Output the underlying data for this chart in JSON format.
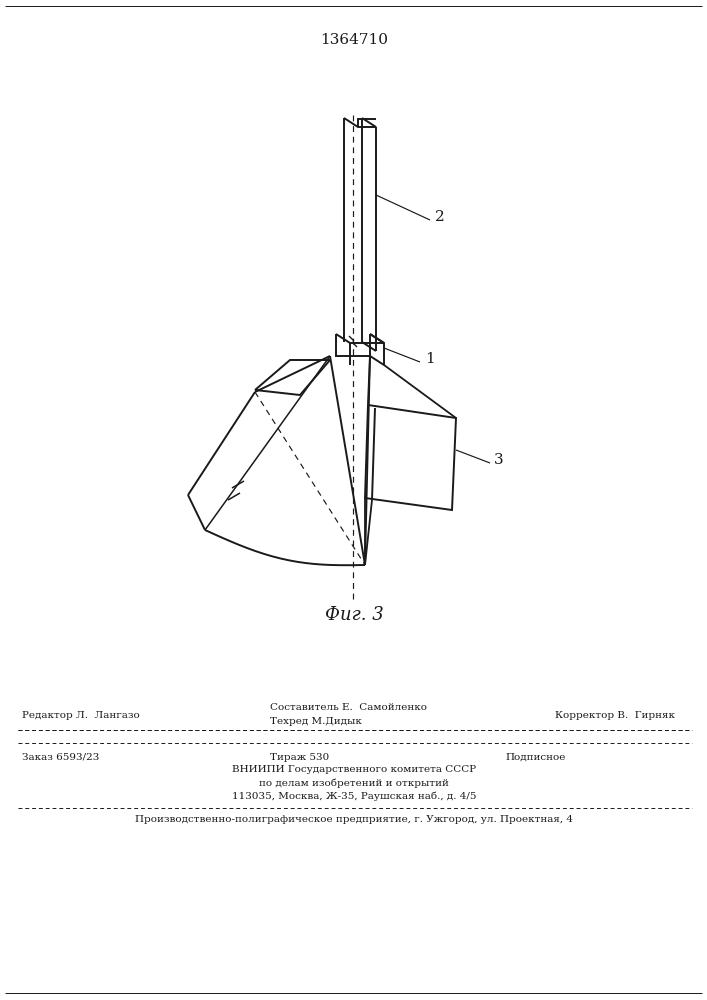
{
  "title": "1364710",
  "fig_label": "Фиг. 3",
  "background_color": "#ffffff",
  "line_color": "#1a1a1a",
  "label_1": "1",
  "label_2": "2",
  "label_3": "3",
  "footer_line1_left": "Редактор Л.  Лангазо",
  "footer_line1_center": "Составитель Е.  Самойленко",
  "footer_line1_right": "Корректор В.  Гирняк",
  "footer_line2_center": "Техред М.Дидык",
  "footer_order": "Заказ 6593/23",
  "footer_tirazh": "Тираж 530",
  "footer_podpisnoe": "Подписное",
  "footer_vniip1": "ВНИИПИ Государственного комитета СССР",
  "footer_vniip2": "по делам изобретений и открытий",
  "footer_vniip3": "113035, Москва, Ж-35, Раушская наб., д. 4/5",
  "footer_prod": "Производственно-полиграфическое предприятие, г. Ужгород, ул. Проектная, 4"
}
